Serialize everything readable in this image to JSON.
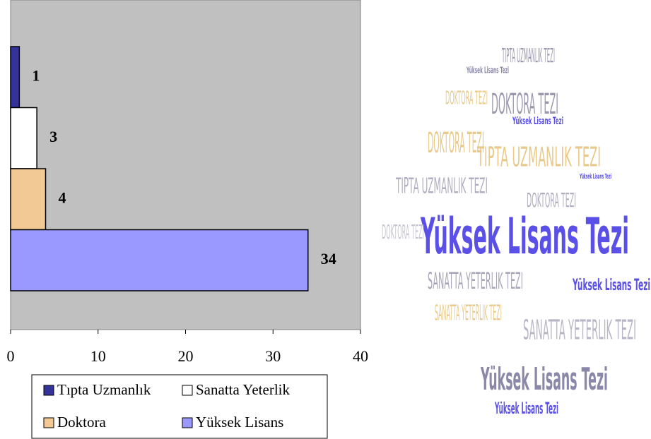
{
  "chart_data": {
    "type": "barh",
    "categories": [
      "Tıpta Uzmanlık",
      "Sanatta Yeterlik",
      "Doktora",
      "Yüksek Lisans"
    ],
    "values": [
      1,
      3,
      4,
      34
    ],
    "colors": [
      "#333399",
      "#ffffff",
      "#f2c994",
      "#9999ff"
    ],
    "xlim": [
      0,
      40
    ],
    "xticks": [
      0,
      10,
      20,
      30,
      40
    ],
    "grid": false,
    "legend": "bottom"
  },
  "word_cloud": {
    "words": [
      "Yüksek Lisans Tezi",
      "Yüksek Lisans Tezi",
      "Yüksek Lisans Tezi",
      "Yüksek Lisans Tezi",
      "Yüksek Lisans Tezi",
      "Yüksek Lisans Tezi",
      "DOKTORA TEZI",
      "DOKTORA TEZI",
      "DOKTORA TEZI",
      "DOKTORA TEZI",
      "TIPTA UZMANLIK TEZI",
      "TIPTA UZMANLIK TEZI",
      "TIPTA UZMANLIK TEZI",
      "SANATTA YETERLIK TEZI",
      "SANATTA YETERLIK TEZI",
      "SANATTA YETERLIK TEZI",
      "DOKTORA TEZI",
      "Yüksek Lisans Tezi"
    ]
  }
}
